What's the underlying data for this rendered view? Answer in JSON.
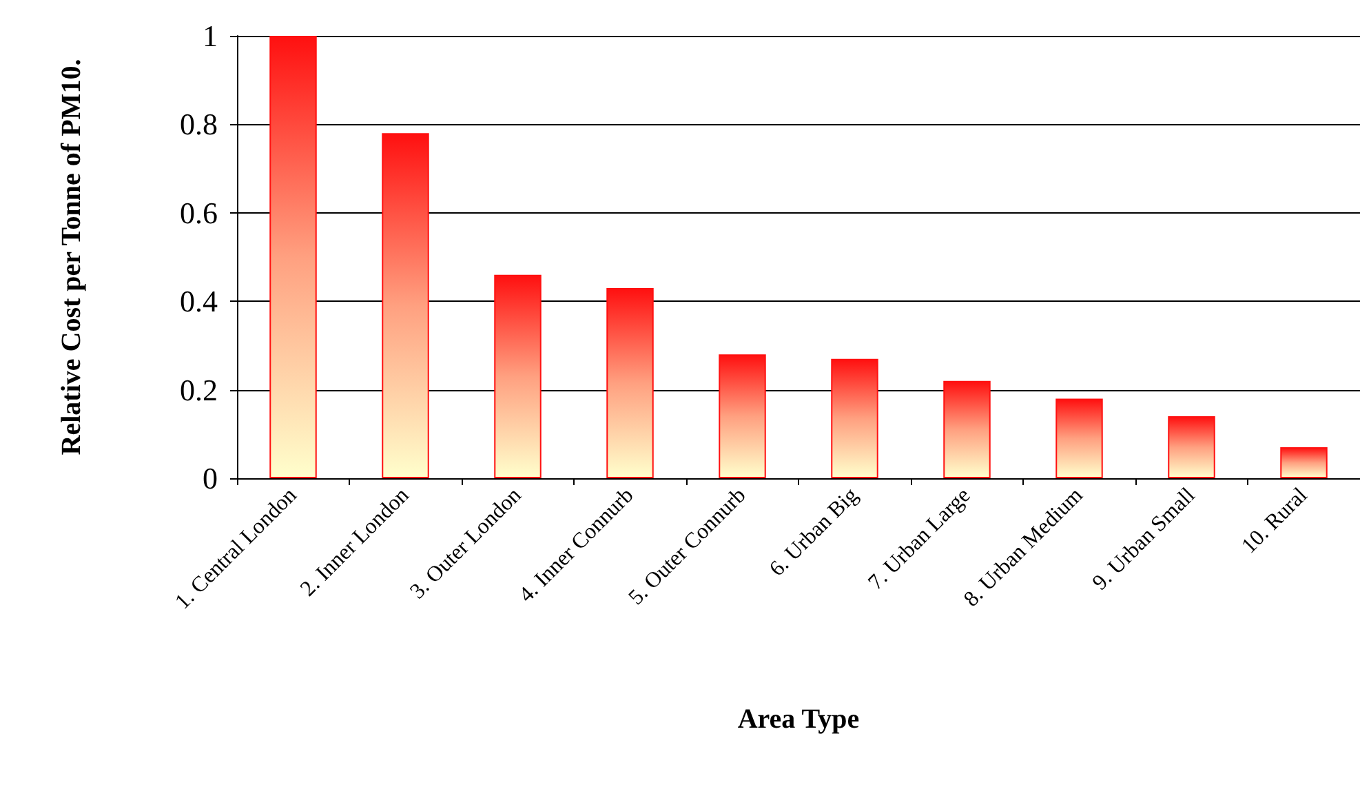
{
  "chart_data": {
    "type": "bar",
    "xlabel": "Area Type",
    "ylabel": "Relative Cost per Tonne of PM10.",
    "categories": [
      "1. Central London",
      "2. Inner London",
      "3. Outer London",
      "4. Inner Connurb",
      "5. Outer Connurb",
      "6. Urban Big",
      "7. Urban Large",
      "8. Urban Medium",
      "9. Urban Small",
      "10. Rural"
    ],
    "values": [
      1.0,
      0.78,
      0.46,
      0.43,
      0.28,
      0.27,
      0.22,
      0.18,
      0.14,
      0.07
    ],
    "color": "#ff1010",
    "ylim": [
      0,
      1
    ],
    "yticks": [
      0,
      0.2,
      0.4,
      0.6,
      0.8,
      1
    ],
    "grid": "y"
  }
}
